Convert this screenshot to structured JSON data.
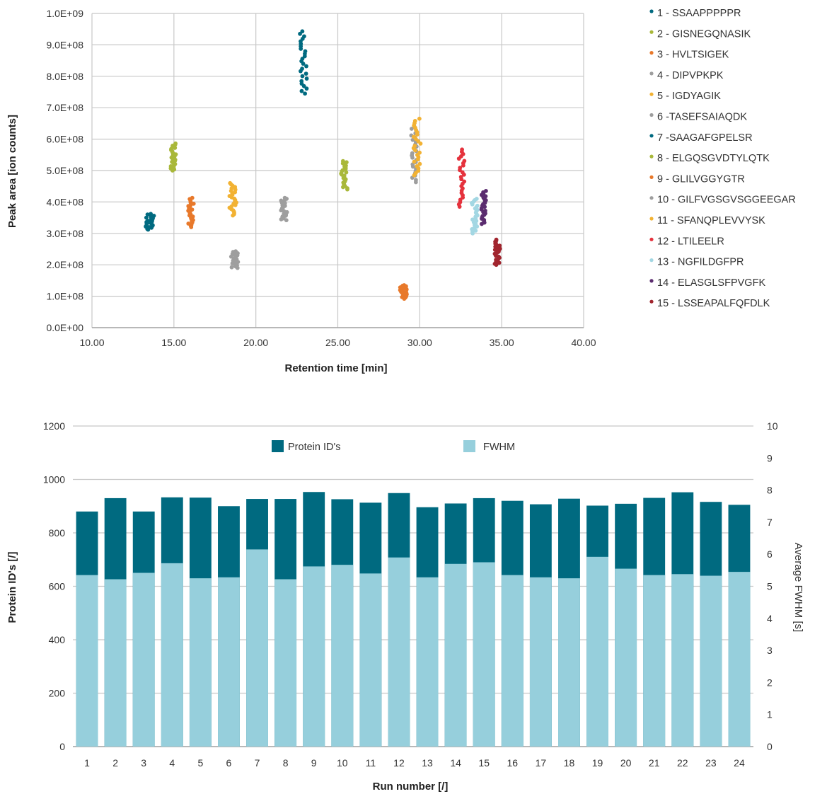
{
  "colors": {
    "gridline": "#c8c8c8",
    "axis": "#bfbfbf",
    "text": "#333333",
    "protein_ids": "#006a80",
    "fwhm": "#96cfdc"
  },
  "chart_data": [
    {
      "type": "scatter",
      "title": "",
      "xlabel": "Retention time [min]",
      "ylabel": "Peak area [ion counts]",
      "xlim": [
        10,
        40
      ],
      "ylim": [
        0,
        1000000000
      ],
      "x_ticks": [
        10,
        15,
        20,
        25,
        30,
        35,
        40
      ],
      "x_tick_labels": [
        "10.00",
        "15.00",
        "20.00",
        "25.00",
        "30.00",
        "35.00",
        "40.00"
      ],
      "y_ticks": [
        0,
        100000000,
        200000000,
        300000000,
        400000000,
        500000000,
        600000000,
        700000000,
        800000000,
        900000000,
        1000000000
      ],
      "y_tick_labels": [
        "0.0E+00",
        "1.0E+08",
        "2.0E+08",
        "3.0E+08",
        "4.0E+08",
        "5.0E+08",
        "6.0E+08",
        "7.0E+08",
        "8.0E+08",
        "9.0E+08",
        "1.0E+09"
      ],
      "grid": true,
      "legend_position": "right",
      "series": [
        {
          "name": "1 - SSAAPPPPPR",
          "color": "#006a80",
          "rt": [
            13.1,
            13.9
          ],
          "area_min": 312000000,
          "area_max": 362000000
        },
        {
          "name": "2 - GISNEGQNASIK",
          "color": "#a9b83a",
          "rt": [
            14.7,
            15.2
          ],
          "area_min": 500000000,
          "area_max": 586000000
        },
        {
          "name": "3 - HVLTSIGEK",
          "color": "#e8792b",
          "rt": [
            15.8,
            16.3
          ],
          "area_min": 320000000,
          "area_max": 413000000
        },
        {
          "name": "4 - DIPVPKPK",
          "color": "#9e9e9e",
          "rt": [
            18.4,
            19.0
          ],
          "area_min": 190000000,
          "area_max": 243000000
        },
        {
          "name": "5 - IGDYAGIK",
          "color": "#f2b233",
          "rt": [
            18.3,
            18.9
          ],
          "area_min": 357000000,
          "area_max": 460000000
        },
        {
          "name": "6 -TASEFSAIAQDK",
          "color": "#9e9e9e",
          "rt": [
            21.4,
            22.0
          ],
          "area_min": 342000000,
          "area_max": 413000000
        },
        {
          "name": "7 -SAAGAFGPELSR",
          "color": "#006a80",
          "rt": [
            22.6,
            23.2
          ],
          "area_min": 745000000,
          "area_max": 943000000
        },
        {
          "name": "8 - ELGQSGVDTYLQTK",
          "color": "#a9b83a",
          "rt": [
            25.1,
            25.7
          ],
          "area_min": 440000000,
          "area_max": 530000000
        },
        {
          "name": "9 - GLILVGGYGTR",
          "color": "#e8792b",
          "rt": [
            28.7,
            29.3
          ],
          "area_min": 92000000,
          "area_max": 135000000
        },
        {
          "name": "10 - GILFVGSGVSGGEEGAR",
          "color": "#9e9e9e",
          "rt": [
            29.4,
            29.9
          ],
          "area_min": 463000000,
          "area_max": 640000000
        },
        {
          "name": "11 - SFANQPLEVVYSK",
          "color": "#f2b233",
          "rt": [
            29.5,
            30.2
          ],
          "area_min": 485000000,
          "area_max": 665000000
        },
        {
          "name": "12 - LTILEELR",
          "color": "#e5323d",
          "rt": [
            32.3,
            32.8
          ],
          "area_min": 385000000,
          "area_max": 567000000
        },
        {
          "name": "13 - NGFILDGFPR",
          "color": "#a3d7e3",
          "rt": [
            33.1,
            33.6
          ],
          "area_min": 300000000,
          "area_max": 410000000
        },
        {
          "name": "14 - ELASGLSFPVGFK",
          "color": "#5b2c6f",
          "rt": [
            33.7,
            34.1
          ],
          "area_min": 330000000,
          "area_max": 435000000
        },
        {
          "name": "15 - LSSEAPALFQFDLK",
          "color": "#a1252e",
          "rt": [
            34.5,
            35.0
          ],
          "area_min": 200000000,
          "area_max": 280000000
        }
      ]
    },
    {
      "type": "bar",
      "title": "",
      "xlabel": "Run number [/]",
      "ylabel": "Protein ID's [/]",
      "y2label": "Average FWHM [s]",
      "ylim": [
        0,
        1200
      ],
      "y2lim": [
        0,
        10
      ],
      "y_ticks": [
        0,
        200,
        400,
        600,
        800,
        1000,
        1200
      ],
      "y2_ticks": [
        0,
        1,
        2,
        3,
        4,
        5,
        6,
        7,
        8,
        9,
        10
      ],
      "grid": true,
      "legend_position": "top",
      "categories": [
        "1",
        "2",
        "3",
        "4",
        "5",
        "6",
        "7",
        "8",
        "9",
        "10",
        "11",
        "12",
        "13",
        "14",
        "15",
        "16",
        "17",
        "18",
        "19",
        "20",
        "21",
        "22",
        "23",
        "24"
      ],
      "series": [
        {
          "name": "Protein ID's",
          "axis": "left",
          "color": "#006a80",
          "values": [
            880,
            930,
            880,
            933,
            932,
            900,
            927,
            927,
            953,
            926,
            913,
            949,
            896,
            910,
            930,
            920,
            907,
            928,
            902,
            909,
            931,
            952,
            916,
            905
          ]
        },
        {
          "name": "FWHM",
          "axis": "right",
          "color": "#96cfdc",
          "values": [
            5.35,
            5.22,
            5.42,
            5.72,
            5.25,
            5.28,
            6.15,
            5.22,
            5.62,
            5.67,
            5.4,
            5.9,
            5.28,
            5.7,
            5.75,
            5.35,
            5.28,
            5.25,
            5.92,
            5.55,
            5.35,
            5.38,
            5.33,
            5.45
          ]
        }
      ]
    }
  ]
}
